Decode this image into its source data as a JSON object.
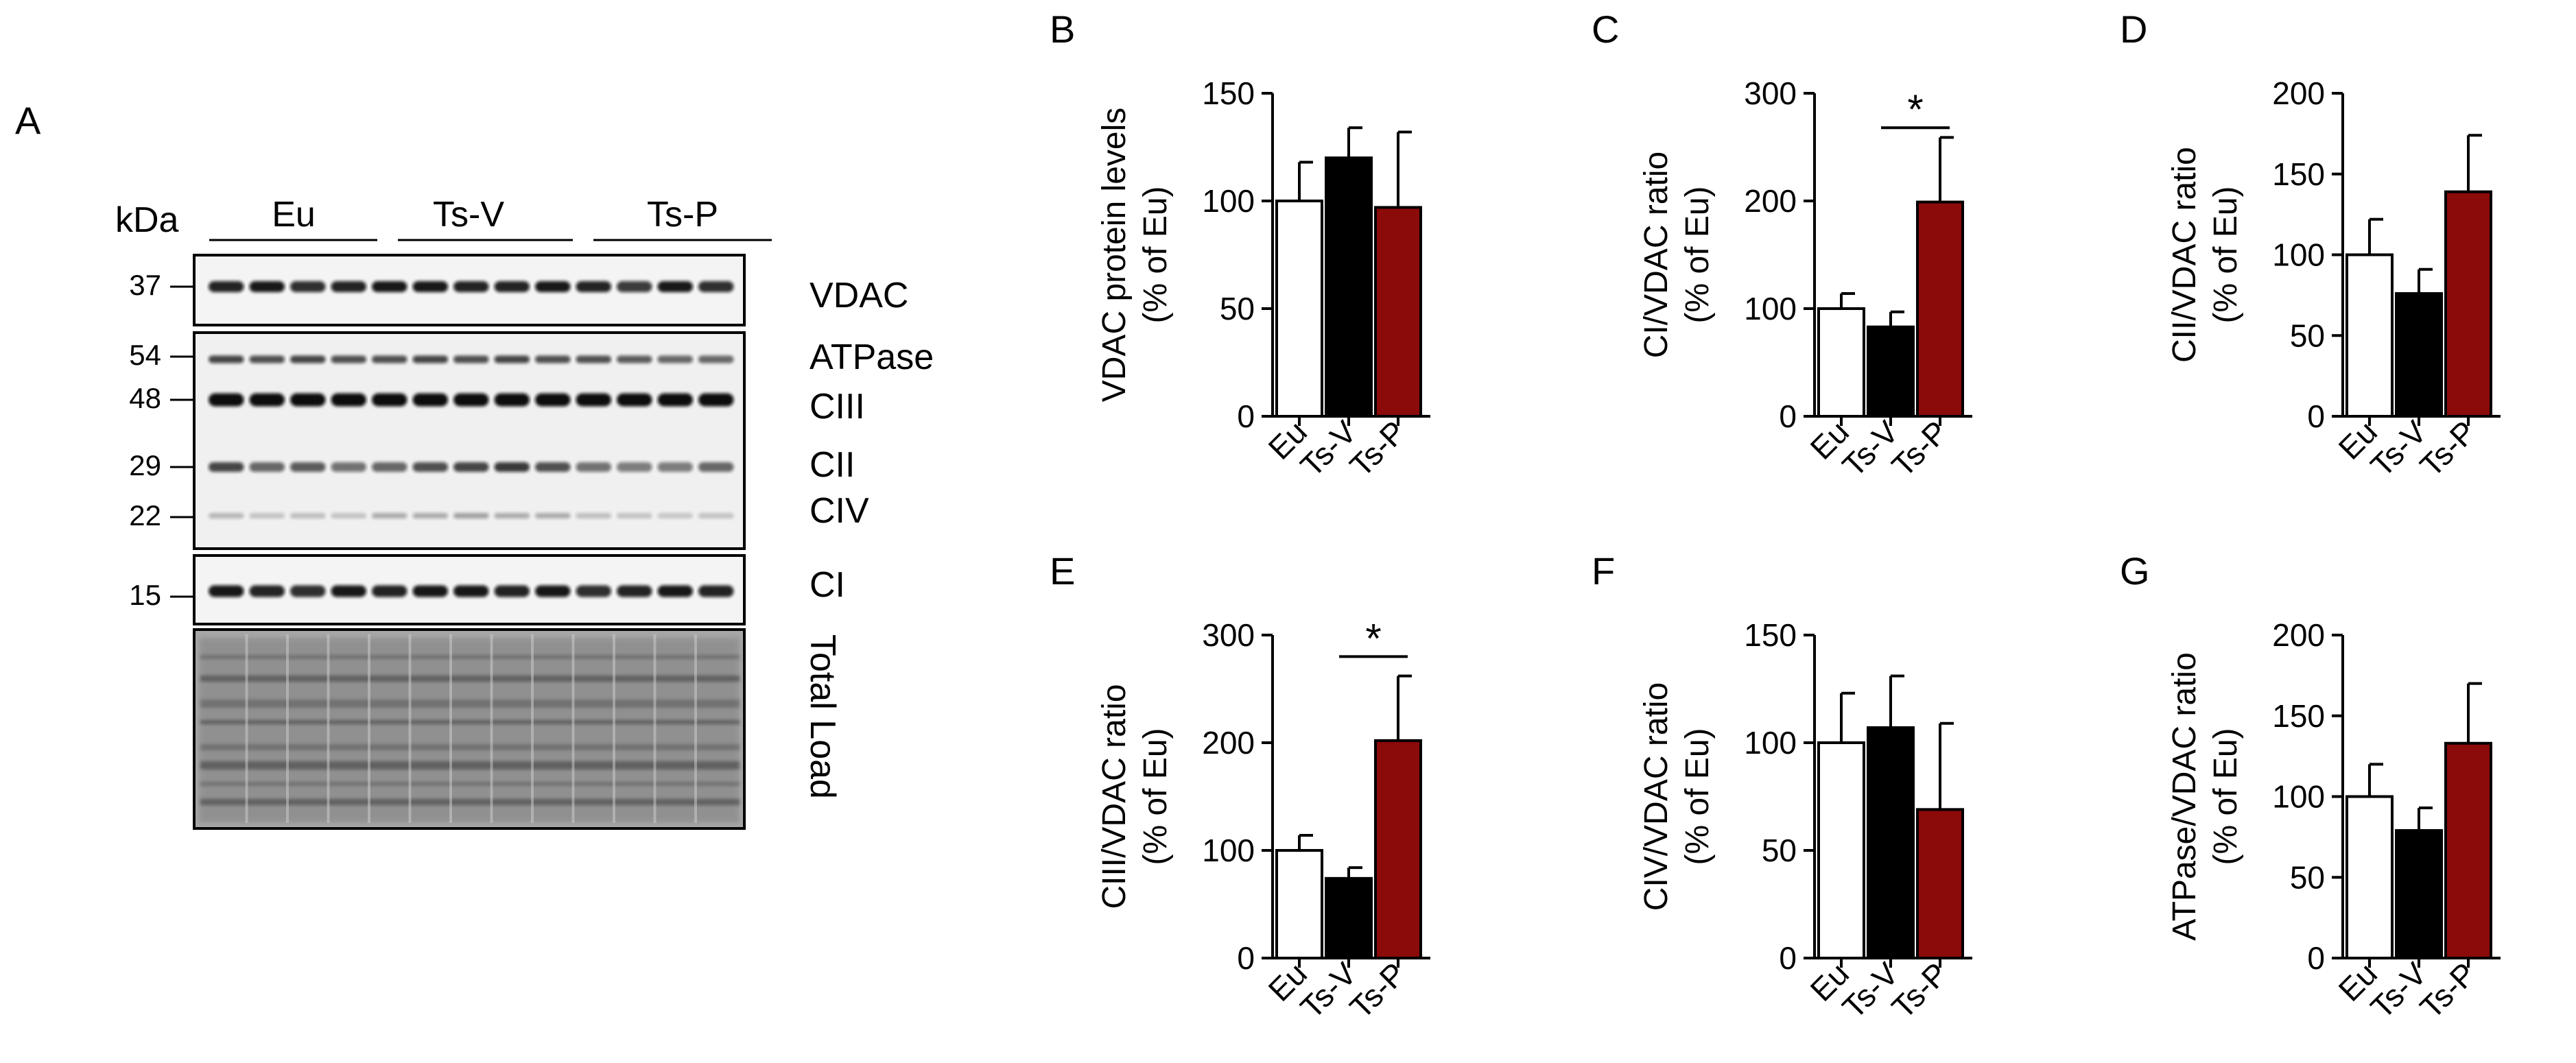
{
  "colors": {
    "eu": "#ffffff",
    "tsv": "#000000",
    "tsp": "#8b0a0a",
    "ink": "#000000"
  },
  "blot": {
    "panel_label": "A",
    "kda_label": "kDa",
    "groups": [
      "Eu",
      "Ts-V",
      "Ts-P"
    ],
    "markers": [
      "37",
      "54",
      "48",
      "29",
      "22",
      "15"
    ],
    "band_labels": {
      "vdac": "VDAC",
      "atpase": "ATPase",
      "ciii": "CIII",
      "cii": "CII",
      "civ": "CIV",
      "ci": "CI",
      "total": "Total Load"
    }
  },
  "chart_data": [
    {
      "panel": "B",
      "type": "bar",
      "categories": [
        "Eu",
        "Ts-V",
        "Ts-P"
      ],
      "values": [
        100,
        120,
        97
      ],
      "errors": [
        18,
        14,
        35
      ],
      "ylabel_lines": [
        "VDAC protein levels",
        "(% of Eu)"
      ],
      "ylim": [
        0,
        150
      ],
      "yticks": [
        0,
        50,
        100,
        150
      ],
      "yticklabels": [
        "0",
        "50",
        "100",
        "150"
      ],
      "significance": null
    },
    {
      "panel": "C",
      "type": "bar",
      "categories": [
        "Eu",
        "Ts-V",
        "Ts-P"
      ],
      "values": [
        100,
        83,
        199
      ],
      "errors": [
        14,
        14,
        60
      ],
      "ylabel_lines": [
        "CI/VDAC ratio",
        "(% of Eu)"
      ],
      "ylim": [
        0,
        300
      ],
      "yticks": [
        0,
        100,
        200,
        300
      ],
      "yticklabels": [
        "0",
        "100",
        "200",
        "300"
      ],
      "significance": {
        "from": 1,
        "to": 2,
        "y": 268,
        "label": "*"
      }
    },
    {
      "panel": "D",
      "type": "bar",
      "categories": [
        "Eu",
        "Ts-V",
        "Ts-P"
      ],
      "values": [
        100,
        76,
        139
      ],
      "errors": [
        22,
        15,
        35
      ],
      "ylabel_lines": [
        "CII/VDAC ratio",
        "(% of Eu)"
      ],
      "ylim": [
        0,
        200
      ],
      "yticks": [
        0,
        50,
        100,
        150,
        200
      ],
      "yticklabels": [
        "0",
        "50",
        "100",
        "150",
        "200"
      ],
      "significance": null
    },
    {
      "panel": "E",
      "type": "bar",
      "categories": [
        "Eu",
        "Ts-V",
        "Ts-P"
      ],
      "values": [
        100,
        74,
        202
      ],
      "errors": [
        14,
        10,
        60
      ],
      "ylabel_lines": [
        "CIII/VDAC ratio",
        "(% of Eu)"
      ],
      "ylim": [
        0,
        300
      ],
      "yticks": [
        0,
        100,
        200,
        300
      ],
      "yticklabels": [
        "0",
        "100",
        "200",
        "300"
      ],
      "significance": {
        "from": 1,
        "to": 2,
        "y": 280,
        "label": "*"
      }
    },
    {
      "panel": "F",
      "type": "bar",
      "categories": [
        "Eu",
        "Ts-V",
        "Ts-P"
      ],
      "values": [
        100,
        107,
        69
      ],
      "errors": [
        23,
        24,
        40
      ],
      "ylabel_lines": [
        "CIV/VDAC ratio",
        "(% of Eu)"
      ],
      "ylim": [
        0,
        150
      ],
      "yticks": [
        0,
        50,
        100,
        150
      ],
      "yticklabels": [
        "0",
        "50",
        "100",
        "150"
      ],
      "significance": null
    },
    {
      "panel": "G",
      "type": "bar",
      "categories": [
        "Eu",
        "Ts-V",
        "Ts-P"
      ],
      "values": [
        100,
        79,
        133
      ],
      "errors": [
        20,
        14,
        37
      ],
      "ylabel_lines": [
        "ATPase/VDAC ratio",
        "(% of Eu)"
      ],
      "ylim": [
        0,
        200
      ],
      "yticks": [
        0,
        50,
        100,
        150,
        200
      ],
      "yticklabels": [
        "0",
        "50",
        "100",
        "150",
        "200"
      ],
      "significance": null
    }
  ]
}
